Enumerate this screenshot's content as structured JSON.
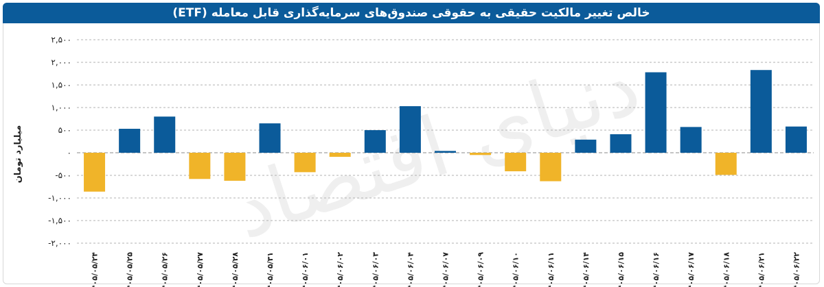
{
  "watermark": "دنیای اقتصاد",
  "colors": {
    "positive": "#0b5b9a",
    "negative": "#f0b429",
    "title_bg": "#0b5b9a",
    "grid": "#b0b0b0"
  },
  "chart_data": {
    "type": "bar",
    "title": "خالص تغییر مالکیت حقیقی به حقوقی صندوق‌های سرمایه‌گذاری قابل معامله (ETF)",
    "ylabel": "میلیارد تومان",
    "xlabel": "",
    "ylim": [
      -2000,
      2500
    ],
    "yticks": [
      2500,
      2000,
      1500,
      1000,
      500,
      0,
      -500,
      -1000,
      -1500,
      -2000
    ],
    "ytick_labels": [
      "۲,۵۰۰",
      "۲,۰۰۰",
      "۱,۵۰۰",
      "۱,۰۰۰",
      "۵۰۰",
      "۰",
      "-۵۰۰",
      "-۱,۰۰۰",
      "-۱,۵۰۰",
      "-۲,۰۰۰"
    ],
    "grid": true,
    "legend": "none",
    "categories": [
      "۱۴۰۵/۰۵/۲۴",
      "۱۴۰۵/۰۵/۲۵",
      "۱۴۰۵/۰۵/۲۶",
      "۱۴۰۵/۰۵/۲۷",
      "۱۴۰۵/۰۵/۲۸",
      "۱۴۰۵/۰۵/۳۱",
      "۱۴۰۵/۰۶/۰۱",
      "۱۴۰۵/۰۶/۰۲",
      "۱۴۰۵/۰۶/۰۳",
      "۱۴۰۵/۰۶/۰۴",
      "۱۴۰۵/۰۶/۰۷",
      "۱۴۰۵/۰۶/۰۹",
      "۱۴۰۵/۰۶/۱۰",
      "۱۴۰۵/۰۶/۱۱",
      "۱۴۰۵/۰۶/۱۴",
      "۱۴۰۵/۰۶/۱۵",
      "۱۴۰۵/۰۶/۱۶",
      "۱۴۰۵/۰۶/۱۷",
      "۱۴۰۵/۰۶/۱۸",
      "۱۴۰۵/۰۶/۲۱",
      "۱۴۰۵/۰۶/۲۲"
    ],
    "values": [
      -860,
      530,
      800,
      -580,
      -620,
      650,
      -430,
      -90,
      500,
      1030,
      40,
      -50,
      -410,
      -630,
      290,
      410,
      1780,
      570,
      -490,
      1830,
      580
    ]
  }
}
